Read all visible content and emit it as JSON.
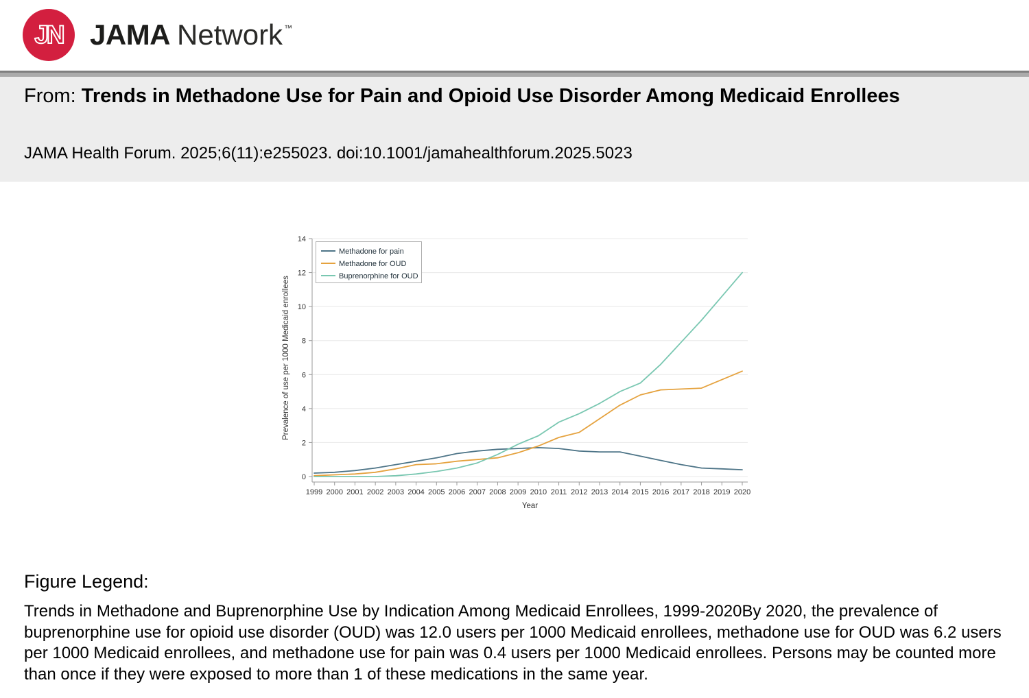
{
  "header": {
    "logo_circle_text": "JN",
    "logo_circle_color": "#d31f3f",
    "brand_bold": "JAMA",
    "brand_regular": "Network",
    "trademark": "™"
  },
  "citation_band": {
    "from_prefix": "From: ",
    "article_title": "Trends in Methadone Use for Pain and Opioid Use Disorder Among Medicaid Enrollees",
    "citation": "JAMA Health Forum. 2025;6(11):e255023. doi:10.1001/jamahealthforum.2025.5023"
  },
  "chart_data": {
    "type": "line",
    "xlabel": "Year",
    "ylabel": "Prevalence of use per 1000 Medicaid enrollees",
    "x": [
      1999,
      2000,
      2001,
      2002,
      2003,
      2004,
      2005,
      2006,
      2007,
      2008,
      2009,
      2010,
      2011,
      2012,
      2013,
      2014,
      2015,
      2016,
      2017,
      2018,
      2019,
      2020
    ],
    "ylim": [
      0,
      14
    ],
    "ytick_step": 2,
    "grid": true,
    "legend_position": "top-left",
    "series": [
      {
        "name": "Methadone for pain",
        "color": "#4d7487",
        "values": [
          0.2,
          0.25,
          0.35,
          0.5,
          0.7,
          0.9,
          1.1,
          1.35,
          1.5,
          1.6,
          1.65,
          1.7,
          1.65,
          1.5,
          1.45,
          1.45,
          1.2,
          0.95,
          0.7,
          0.5,
          0.45,
          0.4
        ]
      },
      {
        "name": "Methadone for OUD",
        "color": "#e5a23e",
        "values": [
          0.05,
          0.1,
          0.15,
          0.25,
          0.45,
          0.7,
          0.75,
          0.9,
          1.0,
          1.1,
          1.4,
          1.8,
          2.3,
          2.6,
          3.4,
          4.2,
          4.8,
          5.1,
          5.15,
          5.2,
          5.7,
          6.2
        ]
      },
      {
        "name": "Buprenorphine for OUD",
        "color": "#79c7b1",
        "values": [
          0.0,
          0.0,
          0.0,
          0.0,
          0.05,
          0.15,
          0.3,
          0.5,
          0.8,
          1.3,
          1.9,
          2.4,
          3.2,
          3.7,
          4.3,
          5.0,
          5.5,
          6.6,
          7.9,
          9.2,
          10.6,
          12.0
        ]
      }
    ],
    "colors": {
      "axis": "#999999",
      "grid": "#e8e8e8",
      "tick_text": "#333333",
      "legend_border": "#adadad"
    }
  },
  "figure_legend": {
    "heading": "Figure Legend:",
    "text": "Trends in Methadone and Buprenorphine Use by Indication Among Medicaid Enrollees, 1999-2020By 2020, the prevalence of buprenorphine use for opioid use disorder (OUD) was 12.0 users per 1000 Medicaid enrollees, methadone use for OUD was 6.2 users per 1000 Medicaid enrollees, and methadone use for pain was 0.4 users per 1000 Medicaid enrollees. Persons may be counted more than once if they were exposed to more than 1 of these medications in the same year."
  }
}
